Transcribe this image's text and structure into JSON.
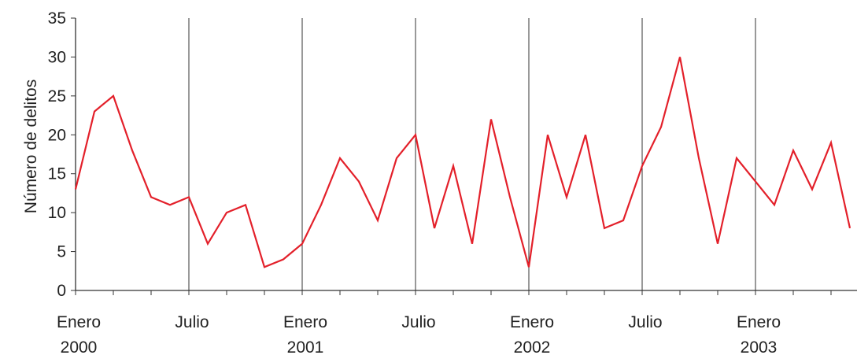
{
  "chart_data": {
    "type": "line",
    "ylabel": "Número de delitos",
    "ylim": [
      0,
      35
    ],
    "yticks": [
      0,
      5,
      10,
      15,
      20,
      25,
      30,
      35
    ],
    "x_unit": "month",
    "x_start": "2000-01",
    "x_labels": [
      {
        "month_index": 0,
        "line1": "Enero",
        "line2": "2000"
      },
      {
        "month_index": 6,
        "line1": "Julio",
        "line2": ""
      },
      {
        "month_index": 12,
        "line1": "Enero",
        "line2": "2001"
      },
      {
        "month_index": 18,
        "line1": "Julio",
        "line2": ""
      },
      {
        "month_index": 24,
        "line1": "Enero",
        "line2": "2002"
      },
      {
        "month_index": 30,
        "line1": "Julio",
        "line2": ""
      },
      {
        "month_index": 36,
        "line1": "Enero",
        "line2": "2003"
      }
    ],
    "vertical_gridlines_at": [
      6,
      12,
      18,
      24,
      30,
      36
    ],
    "series": [
      {
        "color": "#e3202a",
        "values": [
          13,
          23,
          25,
          18,
          12,
          11,
          12,
          6,
          10,
          11,
          3,
          4,
          6,
          11,
          17,
          14,
          9,
          17,
          20,
          8,
          16,
          6,
          22,
          12,
          3,
          20,
          12,
          20,
          8,
          9,
          16,
          21,
          30,
          17,
          6,
          17,
          14,
          11,
          18,
          13,
          19,
          8
        ]
      }
    ]
  }
}
